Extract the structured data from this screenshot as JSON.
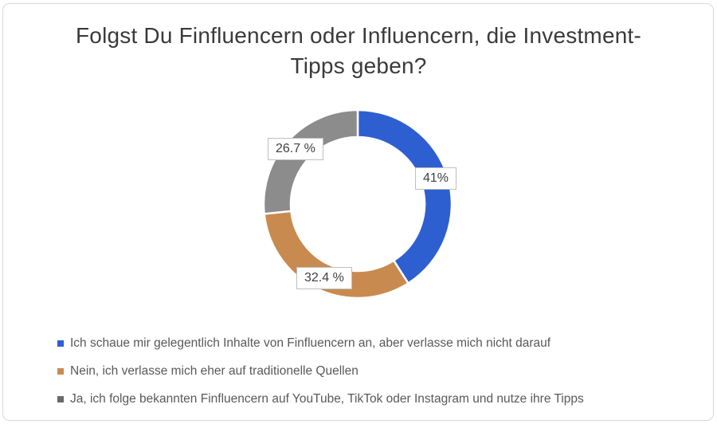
{
  "page": {
    "title_lines": [
      "Folgst Du Finfluencern oder Influencern, die Investment-",
      "Tipps geben?"
    ]
  },
  "chart_data": {
    "type": "pie",
    "subtype": "donut",
    "title": "Folgst Du Finfluencern oder Influencern, die Investment-Tipps geben?",
    "unit": "%",
    "start_angle_deg": 0,
    "direction": "clockwise",
    "donut_hole_ratio": 0.71,
    "legend_position": "bottom-left",
    "segments": [
      {
        "label": "Ich schaue mir gelegentlich Inhalte von Finfluencern an, aber verlasse mich nicht darauf",
        "value": 41,
        "display_label": "41%",
        "color": "#2E5FD1"
      },
      {
        "label": "Nein, ich verlasse mich eher auf traditionelle Quellen",
        "value": 32.4,
        "display_label": "32.4 %",
        "color": "#C98A50"
      },
      {
        "label": "Ja, ich folge bekannten Finfluencern auf YouTube, TikTok oder Instagram und nutze ihre Tipps",
        "value": 26.7,
        "display_label": "26.7 %",
        "color": "#8C8C8C"
      }
    ]
  },
  "legend": {
    "items": [
      {
        "label": "Ich schaue mir gelegentlich Inhalte von Finfluencern an, aber verlasse mich nicht darauf",
        "color": "#2E5FD1"
      },
      {
        "label": "Nein, ich verlasse mich eher auf traditionelle Quellen",
        "color": "#C98A50"
      },
      {
        "label": "Ja, ich folge bekannten Finfluencern auf YouTube, TikTok oder Instagram und nutze ihre Tipps",
        "color": "#6A6A6A"
      }
    ]
  },
  "colors": {
    "title_text": "#3A3A3A",
    "legend_text": "#595959",
    "label_text": "#404040",
    "label_border": "#BFBFBF",
    "frame_border": "#D8D8D8",
    "background": "#FFFFFF"
  }
}
